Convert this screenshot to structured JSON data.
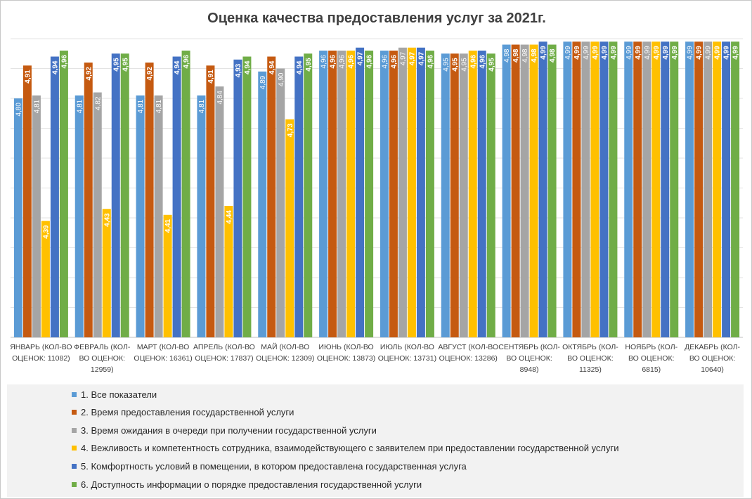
{
  "chart_data": {
    "type": "bar",
    "title": "Оценка качества предоставления услуг за 2021г.",
    "categories": [
      "ЯНВАРЬ (КОЛ-ВО ОЦЕНОК: 11082)",
      "ФЕВРАЛЬ (КОЛ-ВО ОЦЕНОК: 12959)",
      "МАРТ (КОЛ-ВО ОЦЕНОК: 16361)",
      "АПРЕЛЬ (КОЛ-ВО ОЦЕНОК: 17837)",
      "МАЙ (КОЛ-ВО ОЦЕНОК: 12309)",
      "ИЮНЬ (КОЛ-ВО ОЦЕНОК: 13873)",
      "ИЮЛЬ (КОЛ-ВО ОЦЕНОК: 13731)",
      "АВГУСТ (КОЛ-ВО ОЦЕНОК: 13286)",
      "СЕНТЯБРЬ (КОЛ-ВО ОЦЕНОК: 8948)",
      "ОКТЯБРЬ (КОЛ-ВО ОЦЕНОК: 11325)",
      "НОЯБРЬ (КОЛ-ВО ОЦЕНОК: 6815)",
      "ДЕКАБРЬ (КОЛ-ВО ОЦЕНОК: 10640)"
    ],
    "series": [
      {
        "name": "1. Все показатели",
        "color": "#5b9bd5",
        "values": [
          4.8,
          4.81,
          4.81,
          4.81,
          4.89,
          4.96,
          4.96,
          4.95,
          4.98,
          4.99,
          4.99,
          4.99
        ],
        "labels": [
          "4,80",
          "4,81",
          "4,81",
          "4,81",
          "4,89",
          "4,96",
          "4,96",
          "4,95",
          "4,98",
          "4,99",
          "4,99",
          "4,99"
        ]
      },
      {
        "name": "2. Время предоставления государственной услуги",
        "color": "#c55a11",
        "values": [
          4.91,
          4.92,
          4.92,
          4.91,
          4.94,
          4.96,
          4.96,
          4.95,
          4.98,
          4.99,
          4.99,
          4.99
        ],
        "labels": [
          "4,91",
          "4,92",
          "4,92",
          "4,91",
          "4,94",
          "4,96",
          "4,96",
          "4,95",
          "4,98",
          "4,99",
          "4,99",
          "4,99"
        ]
      },
      {
        "name": "3. Время ожидания в очереди при получении государственной услуги",
        "color": "#a5a5a5",
        "values": [
          4.81,
          4.82,
          4.81,
          4.84,
          4.9,
          4.96,
          4.97,
          4.95,
          4.98,
          4.99,
          4.99,
          4.99
        ],
        "labels": [
          "4,81",
          "4,82",
          "4,81",
          "4,84",
          "4,90",
          "4,96",
          "4,97",
          "4,95",
          "4,98",
          "4,99",
          "4,99",
          "4,99"
        ]
      },
      {
        "name": "4. Вежливость и компетентность сотрудника, взаимодействующего с заявителем при предоставлении государственной услуги",
        "color": "#ffc000",
        "values": [
          4.39,
          4.43,
          4.41,
          4.44,
          4.73,
          4.96,
          4.97,
          4.96,
          4.98,
          4.99,
          4.99,
          4.99
        ],
        "labels": [
          "4,39",
          "4,43",
          "4,41",
          "4,44",
          "4,73",
          "4,96",
          "4,97",
          "4,96",
          "4,98",
          "4,99",
          "4,99",
          "4,99"
        ]
      },
      {
        "name": "5. Комфортность условий в помещении, в котором предоставлена государственная услуга",
        "color": "#4472c4",
        "values": [
          4.94,
          4.95,
          4.94,
          4.93,
          4.94,
          4.97,
          4.97,
          4.96,
          4.99,
          4.99,
          4.99,
          4.99
        ],
        "labels": [
          "4,94",
          "4,95",
          "4,94",
          "4,93",
          "4,94",
          "4,97",
          "4,97",
          "4,96",
          "4,99",
          "4,99",
          "4,99",
          "4,99"
        ]
      },
      {
        "name": "6. Доступность информации о порядке предоставления государственной услуги",
        "color": "#70ad47",
        "values": [
          4.96,
          4.95,
          4.96,
          4.94,
          4.95,
          4.96,
          4.96,
          4.95,
          4.98,
          4.99,
          4.99,
          4.99
        ],
        "labels": [
          "4,96",
          "4,95",
          "4,96",
          "4,94",
          "4,95",
          "4,96",
          "4,96",
          "4,95",
          "4,98",
          "4,99",
          "4,99",
          "4,99"
        ]
      }
    ],
    "ylim": [
      4.0,
      5.0
    ],
    "grid": true,
    "legend_position": "bottom"
  },
  "xlabels": [
    [
      "ЯНВАРЬ (КОЛ-ВО",
      "ОЦЕНОК: 11082)"
    ],
    [
      "ФЕВРАЛЬ (КОЛ-",
      "ВО ОЦЕНОК:",
      "12959)"
    ],
    [
      "МАРТ (КОЛ-ВО",
      "ОЦЕНОК: 16361)"
    ],
    [
      "АПРЕЛЬ (КОЛ-ВО",
      "ОЦЕНОК: 17837)"
    ],
    [
      "МАЙ (КОЛ-ВО",
      "ОЦЕНОК: 12309)"
    ],
    [
      "ИЮНЬ (КОЛ-ВО",
      "ОЦЕНОК: 13873)"
    ],
    [
      "ИЮЛЬ (КОЛ-ВО",
      "ОЦЕНОК: 13731)"
    ],
    [
      "АВГУСТ (КОЛ-ВО",
      "ОЦЕНОК: 13286)"
    ],
    [
      "СЕНТЯБРЬ (КОЛ-",
      "ВО ОЦЕНОК:",
      "8948)"
    ],
    [
      "ОКТЯБРЬ (КОЛ-",
      "ВО ОЦЕНОК:",
      "11325)"
    ],
    [
      "НОЯБРЬ (КОЛ-",
      "ВО ОЦЕНОК:",
      "6815)"
    ],
    [
      "ДЕКАБРЬ (КОЛ-",
      "ВО ОЦЕНОК:",
      "10640)"
    ]
  ]
}
